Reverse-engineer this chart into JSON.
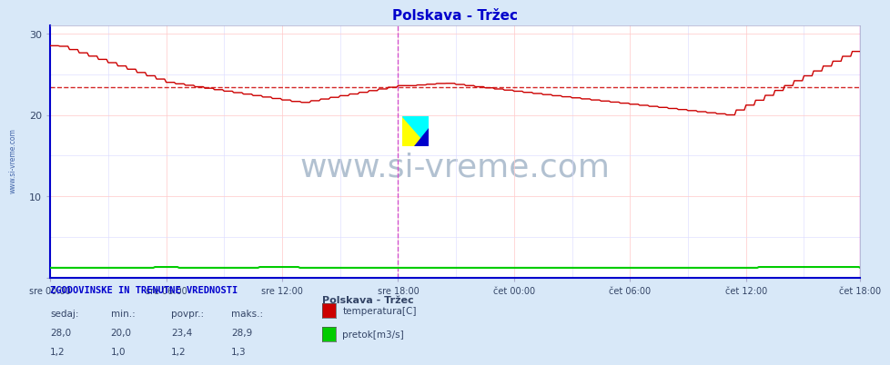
{
  "title": "Polskava - Tržec",
  "title_color": "#0000cc",
  "background_color": "#d8e8f8",
  "plot_bg_color": "#ffffff",
  "grid_color_major": "#ffcccc",
  "grid_color_minor": "#ddddff",
  "x_ticks_labels": [
    "sre 00:00",
    "sre 06:00",
    "sre 12:00",
    "sre 18:00",
    "čet 00:00",
    "čet 06:00",
    "čet 12:00",
    "čet 18:00"
  ],
  "x_ticks_pos": [
    0,
    72,
    144,
    216,
    288,
    360,
    432,
    503
  ],
  "y_ticks": [
    0,
    10,
    20,
    30
  ],
  "ylim": [
    0,
    31
  ],
  "xlim": [
    0,
    503
  ],
  "avg_line_y": 23.4,
  "avg_line_color": "#cc0000",
  "vertical_line1_x": 216,
  "vertical_line2_x": 503,
  "vertical_line_color": "#cc44cc",
  "temp_color": "#cc0000",
  "flow_color": "#00cc00",
  "watermark": "www.si-vreme.com",
  "watermark_color": "#aabbcc",
  "watermark_fontsize": 26,
  "sidebar_text": "www.si-vreme.com",
  "sidebar_color": "#4466aa",
  "legend_title": "Polskava - Tržec",
  "legend_items": [
    "temperatura[C]",
    "pretok[m3/s]"
  ],
  "legend_colors": [
    "#cc0000",
    "#00cc00"
  ],
  "table_header": [
    "sedaj:",
    "min.:",
    "povpr.:",
    "maks.:"
  ],
  "table_row1": [
    "28,0",
    "20,0",
    "23,4",
    "28,9"
  ],
  "table_row2": [
    "1,2",
    "1,0",
    "1,2",
    "1,3"
  ],
  "table_label": "ZGODOVINSKE IN TRENUTNE VREDNOSTI",
  "note_color": "#0000cc",
  "n_points": 504,
  "spine_color": "#0000cc",
  "axis_label_color": "#334466"
}
